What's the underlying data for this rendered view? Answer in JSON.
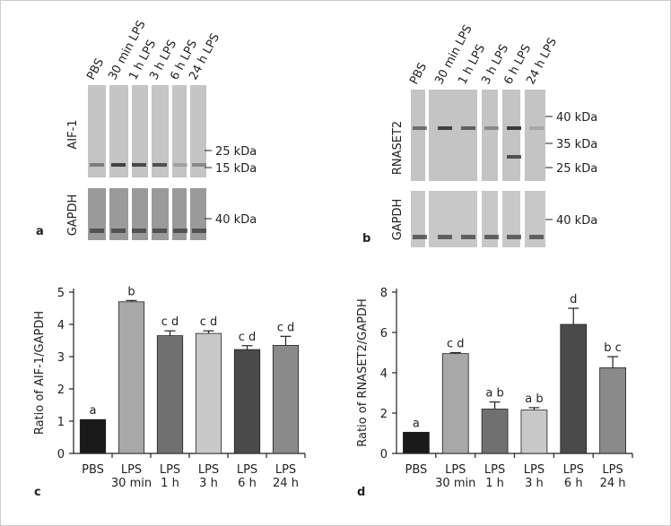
{
  "blots": [
    {
      "panel": "a",
      "lanes": [
        "PBS",
        "30 min LPS",
        "1 h LPS",
        "3 h LPS",
        "6 h LPS",
        "24 h LPS"
      ],
      "target": "AIF-1",
      "loading": "GAPDH",
      "markers": [
        "25 kDa",
        "15 kDa"
      ],
      "loading_markers": [
        "40 kDa"
      ]
    },
    {
      "panel": "b",
      "lanes": [
        "PBS",
        "30 min LPS",
        "1 h LPS",
        "3 h LPS",
        "6 h LPS",
        "24 h LPS"
      ],
      "target": "RNASET2",
      "loading": "GAPDH",
      "markers": [
        "40 kDa",
        "35 kDa",
        "25 kDa"
      ],
      "loading_markers": [
        "40 kDa"
      ]
    }
  ],
  "chart_data": [
    {
      "type": "bar",
      "panel": "c",
      "ylabel": "Ratio of AIF-1/GAPDH",
      "categories": [
        "PBS",
        "LPS\n30 min",
        "LPS\n1 h",
        "LPS\n3 h",
        "LPS\n6 h",
        "LPS\n24 h"
      ],
      "values": [
        1.05,
        4.7,
        3.65,
        3.72,
        3.22,
        3.35
      ],
      "errors": [
        0,
        0.04,
        0.15,
        0.08,
        0.12,
        0.28
      ],
      "letters": [
        "a",
        "b",
        "c d",
        "c d",
        "c d",
        "c d"
      ],
      "colors": [
        "#1a1a1a",
        "#a8a8a8",
        "#707070",
        "#c8c8c8",
        "#4a4a4a",
        "#8a8a8a"
      ],
      "ylim": [
        0,
        5
      ],
      "yticks": [
        0,
        1,
        2,
        3,
        4,
        5
      ]
    },
    {
      "type": "bar",
      "panel": "d",
      "ylabel": "Ratio of RNASET2/GAPDH",
      "categories": [
        "PBS",
        "LPS\n30 min",
        "LPS\n1 h",
        "LPS\n3 h",
        "LPS\n6 h",
        "LPS\n24 h"
      ],
      "values": [
        1.05,
        4.95,
        2.2,
        2.15,
        6.4,
        4.25
      ],
      "errors": [
        0,
        0.05,
        0.35,
        0.12,
        0.8,
        0.55
      ],
      "letters": [
        "a",
        "c d",
        "a b",
        "a b",
        "d",
        "b c"
      ],
      "colors": [
        "#1a1a1a",
        "#a8a8a8",
        "#707070",
        "#c8c8c8",
        "#4a4a4a",
        "#8a8a8a"
      ],
      "ylim": [
        0,
        8
      ],
      "yticks": [
        0,
        2,
        4,
        6,
        8
      ]
    }
  ]
}
